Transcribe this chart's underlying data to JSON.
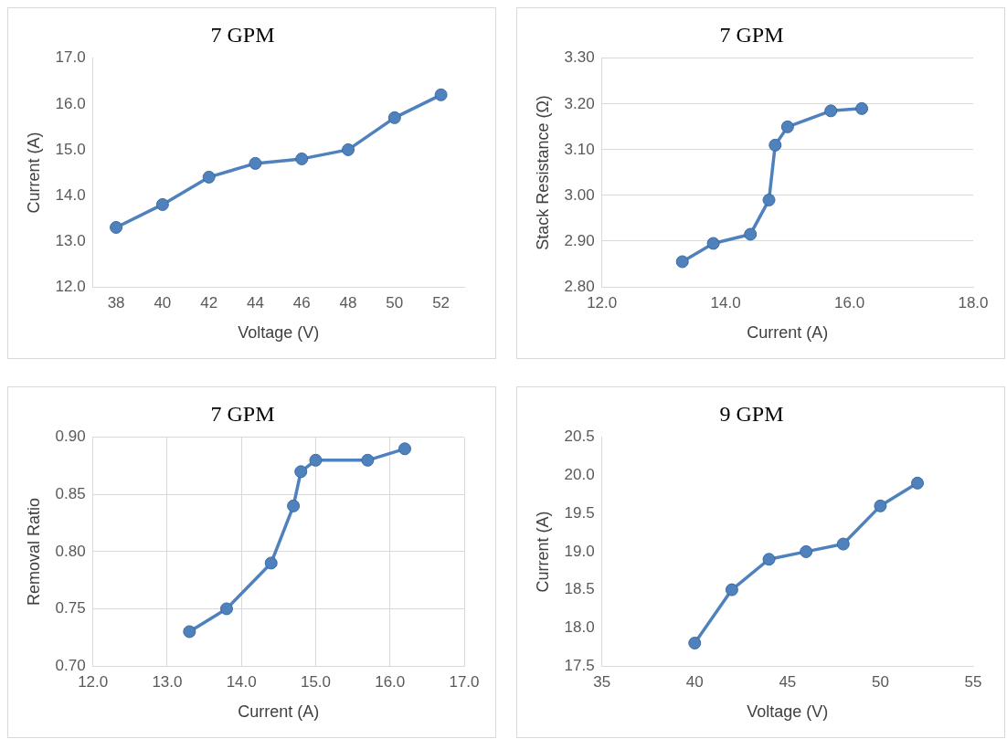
{
  "chart_data": [
    {
      "type": "line",
      "title": "7 GPM",
      "xlabel": "Voltage (V)",
      "ylabel": "Current (A)",
      "categories": [
        "38",
        "40",
        "42",
        "44",
        "46",
        "48",
        "50",
        "52"
      ],
      "series": [
        {
          "color": "#4f81bd",
          "values": [
            13.3,
            13.8,
            14.4,
            14.7,
            14.8,
            15.0,
            15.7,
            16.2
          ]
        }
      ],
      "ylim": [
        12,
        17
      ],
      "yticks": [
        {
          "value": 12,
          "label": "12.0"
        },
        {
          "value": 13,
          "label": "13.0"
        },
        {
          "value": 14,
          "label": "14.0"
        },
        {
          "value": 15,
          "label": "15.0"
        },
        {
          "value": 16,
          "label": "16.0"
        },
        {
          "value": 17,
          "label": "17.0"
        }
      ],
      "grid": false,
      "marker": "circle",
      "line_style": "solid"
    },
    {
      "type": "line",
      "title": "7 GPM",
      "xlabel": "Current (A)",
      "ylabel": "Stack Resistance (Ω)",
      "x": [
        13.3,
        13.8,
        14.4,
        14.7,
        14.8,
        15.0,
        15.7,
        16.2
      ],
      "series": [
        {
          "color": "#4f81bd",
          "values": [
            2.855,
            2.895,
            2.915,
            2.99,
            3.11,
            3.15,
            3.185,
            3.19
          ]
        }
      ],
      "xlim": [
        12,
        18
      ],
      "xticks": [
        {
          "value": 12,
          "label": "12.0"
        },
        {
          "value": 14,
          "label": "14.0"
        },
        {
          "value": 16,
          "label": "16.0"
        },
        {
          "value": 18,
          "label": "18.0"
        }
      ],
      "ylim": [
        2.8,
        3.3
      ],
      "yticks": [
        {
          "value": 2.8,
          "label": "2.80"
        },
        {
          "value": 2.9,
          "label": "2.90"
        },
        {
          "value": 3.0,
          "label": "3.00"
        },
        {
          "value": 3.1,
          "label": "3.10"
        },
        {
          "value": 3.2,
          "label": "3.20"
        },
        {
          "value": 3.3,
          "label": "3.30"
        }
      ],
      "grid": "y",
      "marker": "circle",
      "line_style": "solid"
    },
    {
      "type": "line",
      "title": "7 GPM",
      "xlabel": "Current (A)",
      "ylabel": "Removal Ratio",
      "x": [
        13.3,
        13.8,
        14.4,
        14.7,
        14.8,
        15.0,
        15.7,
        16.2
      ],
      "series": [
        {
          "color": "#4f81bd",
          "values": [
            0.73,
            0.75,
            0.79,
            0.84,
            0.87,
            0.88,
            0.88,
            0.89
          ]
        }
      ],
      "xlim": [
        12,
        17
      ],
      "xticks": [
        {
          "value": 12,
          "label": "12.0"
        },
        {
          "value": 13,
          "label": "13.0"
        },
        {
          "value": 14,
          "label": "14.0"
        },
        {
          "value": 15,
          "label": "15.0"
        },
        {
          "value": 16,
          "label": "16.0"
        },
        {
          "value": 17,
          "label": "17.0"
        }
      ],
      "ylim": [
        0.7,
        0.9
      ],
      "yticks": [
        {
          "value": 0.7,
          "label": "0.70"
        },
        0.75,
        {
          "value": 0.8,
          "label": "0.80"
        },
        0.85,
        {
          "value": 0.9,
          "label": "0.90"
        }
      ],
      "grid": true,
      "marker": "circle",
      "line_style": "solid"
    },
    {
      "type": "line",
      "title": "9 GPM",
      "xlabel": "Voltage (V)",
      "ylabel": "Current (A)",
      "x": [
        40,
        42,
        44,
        46,
        48,
        50,
        52
      ],
      "series": [
        {
          "color": "#4f81bd",
          "values": [
            17.8,
            18.5,
            18.9,
            19.0,
            19.1,
            19.6,
            19.9
          ]
        }
      ],
      "xlim": [
        35,
        55
      ],
      "xticks": [
        35,
        40,
        45,
        50,
        55
      ],
      "ylim": [
        17.5,
        20.5
      ],
      "yticks": [
        17.5,
        {
          "value": 18,
          "label": "18.0"
        },
        18.5,
        {
          "value": 19,
          "label": "19.0"
        },
        19.5,
        {
          "value": 20,
          "label": "20.0"
        },
        20.5
      ],
      "grid": false,
      "marker": "circle",
      "line_style": "solid"
    }
  ]
}
